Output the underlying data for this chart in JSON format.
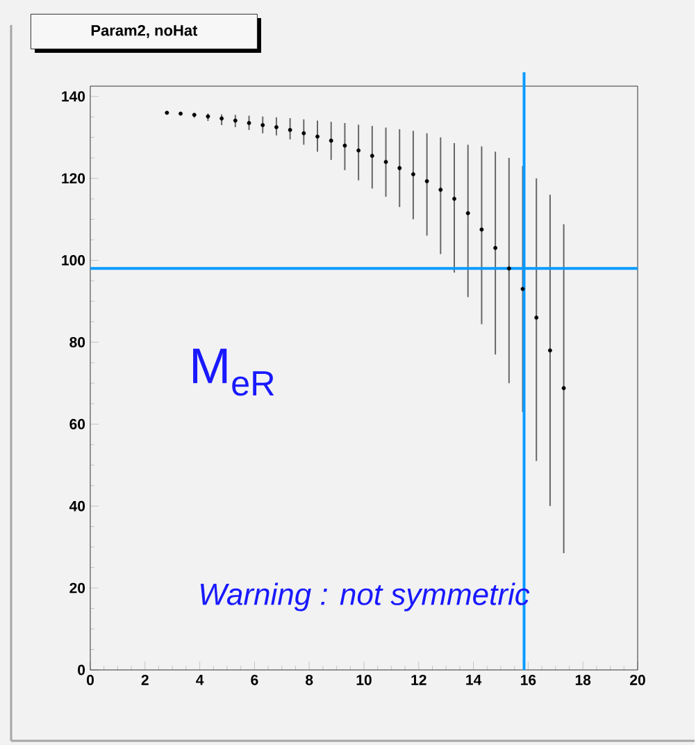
{
  "chart_data": {
    "type": "scatter",
    "title": "Param2, noHat",
    "series": [
      {
        "color": "#000000",
        "x": [
          2.8,
          3.3,
          3.8,
          4.3,
          4.8,
          5.3,
          5.8,
          6.3,
          6.8,
          7.3,
          7.8,
          8.3,
          8.8,
          9.3,
          9.8,
          10.3,
          10.8,
          11.3,
          11.8,
          12.3,
          12.8,
          13.3,
          13.8,
          14.3,
          14.8,
          15.3,
          15.8,
          16.3,
          16.8,
          17.3
        ],
        "values": [
          136,
          135.8,
          135.5,
          135.1,
          134.6,
          134.1,
          133.5,
          133,
          132.5,
          131.8,
          131,
          130.2,
          129.2,
          128,
          126.8,
          125.5,
          124,
          122.5,
          121,
          119.3,
          117.2,
          115,
          111.5,
          107.5,
          103,
          98,
          93,
          86,
          78,
          68.8
        ],
        "errors": [
          [
            136,
            136
          ],
          [
            135.5,
            136
          ],
          [
            134.8,
            135.9
          ],
          [
            134,
            135.8
          ],
          [
            133,
            135.6
          ],
          [
            132.5,
            135.5
          ],
          [
            131.8,
            135.3
          ],
          [
            131,
            135.1
          ],
          [
            130.5,
            134.9
          ],
          [
            129.5,
            134.7
          ],
          [
            128.2,
            134.4
          ],
          [
            126.5,
            134.1
          ],
          [
            124.5,
            133.8
          ],
          [
            122,
            133.5
          ],
          [
            119.5,
            133.1
          ],
          [
            117.5,
            132.8
          ],
          [
            115.5,
            132.4
          ],
          [
            113,
            132
          ],
          [
            110,
            131.6
          ],
          [
            106,
            131
          ],
          [
            101.5,
            130
          ],
          [
            97,
            128.6
          ],
          [
            91,
            128.2
          ],
          [
            84.4,
            127.8
          ],
          [
            77,
            126.5
          ],
          [
            70,
            125
          ],
          [
            63,
            123
          ],
          [
            51,
            120
          ],
          [
            40,
            116
          ],
          [
            28.5,
            108.8
          ]
        ]
      }
    ],
    "xlim": [
      0,
      20
    ],
    "ylim": [
      0,
      142.5
    ],
    "xticks": [
      0,
      2,
      4,
      6,
      8,
      10,
      12,
      14,
      16,
      18,
      20
    ],
    "yticks": [
      0,
      20,
      40,
      60,
      80,
      100,
      120,
      140
    ],
    "marker": "circle",
    "grid": false,
    "ref_lines": [
      {
        "axis": "x",
        "value": 15.85,
        "color": "#0a9bff"
      },
      {
        "axis": "y",
        "value": 98,
        "color": "#0a9bff"
      }
    ],
    "annotations": [
      "M$_{eR}$",
      "Warning : not symmetric"
    ]
  }
}
